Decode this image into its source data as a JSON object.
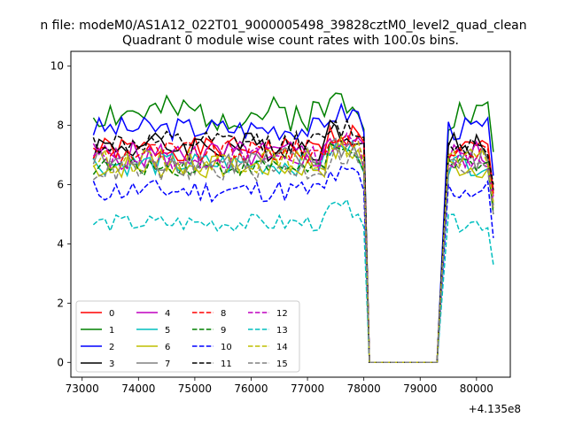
{
  "figure": {
    "suptitle": "n file: modeM0/AS1A12_022T01_9000005498_39828cztM0_level2_quad_clean",
    "title": "Quadrant 0 module wise count rates with 100.0s bins."
  },
  "chart_data": {
    "type": "line",
    "title": "Quadrant 0 module wise count rates with 100.0s bins.",
    "xlabel": "",
    "ylabel": "",
    "x_offset_label": "+4.135e8",
    "xlim": [
      72800,
      80600
    ],
    "ylim": [
      -0.5,
      10.5
    ],
    "x_ticks": [
      73000,
      74000,
      75000,
      76000,
      77000,
      78000,
      79000,
      80000
    ],
    "x_tick_labels": [
      "73000",
      "74000",
      "75000",
      "76000",
      "77000",
      "78000",
      "79000",
      "80000"
    ],
    "y_ticks": [
      0,
      2,
      4,
      6,
      8,
      10
    ],
    "y_tick_labels": [
      "0",
      "2",
      "4",
      "6",
      "8",
      "10"
    ],
    "grid": false,
    "legend": {
      "placement": "lower-left",
      "columns": 4
    },
    "series": [
      {
        "name": "0",
        "color": "#ff0000",
        "dash": "solid",
        "base": 7.2,
        "amp": 0.4,
        "seed": 1,
        "end": 7.0
      },
      {
        "name": "1",
        "color": "#008000",
        "dash": "solid",
        "base": 8.4,
        "amp": 0.6,
        "seed": 2,
        "end": 8.3
      },
      {
        "name": "2",
        "color": "#0000ff",
        "dash": "solid",
        "base": 7.9,
        "amp": 0.4,
        "seed": 3,
        "end": 7.5
      },
      {
        "name": "3",
        "color": "#000000",
        "dash": "solid",
        "base": 7.3,
        "amp": 0.5,
        "seed": 4,
        "end": 7.0
      },
      {
        "name": "4",
        "color": "#bf00bf",
        "dash": "solid",
        "base": 7.0,
        "amp": 0.5,
        "seed": 5,
        "end": 6.8
      },
      {
        "name": "5",
        "color": "#00bfbf",
        "dash": "solid",
        "base": 6.7,
        "amp": 0.4,
        "seed": 6,
        "end": 6.5
      },
      {
        "name": "6",
        "color": "#bfbf00",
        "dash": "solid",
        "base": 6.6,
        "amp": 0.4,
        "seed": 7,
        "end": 6.4
      },
      {
        "name": "7",
        "color": "#808080",
        "dash": "solid",
        "base": 6.8,
        "amp": 0.5,
        "seed": 8,
        "end": 6.5
      },
      {
        "name": "8",
        "color": "#ff0000",
        "dash": "dashed",
        "base": 7.1,
        "amp": 0.4,
        "seed": 9,
        "end": 6.9
      },
      {
        "name": "9",
        "color": "#008000",
        "dash": "dashed",
        "base": 6.6,
        "amp": 0.3,
        "seed": 10,
        "end": 6.2
      },
      {
        "name": "10",
        "color": "#0000ff",
        "dash": "dashed",
        "base": 5.8,
        "amp": 0.4,
        "seed": 11,
        "end": 5.4
      },
      {
        "name": "11",
        "color": "#000000",
        "dash": "dashed",
        "base": 7.4,
        "amp": 0.4,
        "seed": 12,
        "end": 7.2
      },
      {
        "name": "12",
        "color": "#bf00bf",
        "dash": "dashed",
        "base": 6.9,
        "amp": 0.4,
        "seed": 13,
        "end": 6.6
      },
      {
        "name": "13",
        "color": "#00bfbf",
        "dash": "dashed",
        "base": 4.7,
        "amp": 0.3,
        "seed": 14,
        "end": 4.5
      },
      {
        "name": "14",
        "color": "#bfbf00",
        "dash": "dashed",
        "base": 6.8,
        "amp": 0.4,
        "seed": 15,
        "end": 6.6
      },
      {
        "name": "15",
        "color": "#808080",
        "dash": "dashed",
        "base": 6.5,
        "amp": 0.4,
        "seed": 16,
        "end": 6.2
      }
    ],
    "segments": {
      "first": {
        "x_start": 73200,
        "x_end": 78000,
        "step": 100
      },
      "gap": {
        "x_start": 78100,
        "x_end": 79300,
        "value": 0
      },
      "second": {
        "x_start": 79500,
        "x_end": 80300,
        "step": 100
      }
    }
  }
}
